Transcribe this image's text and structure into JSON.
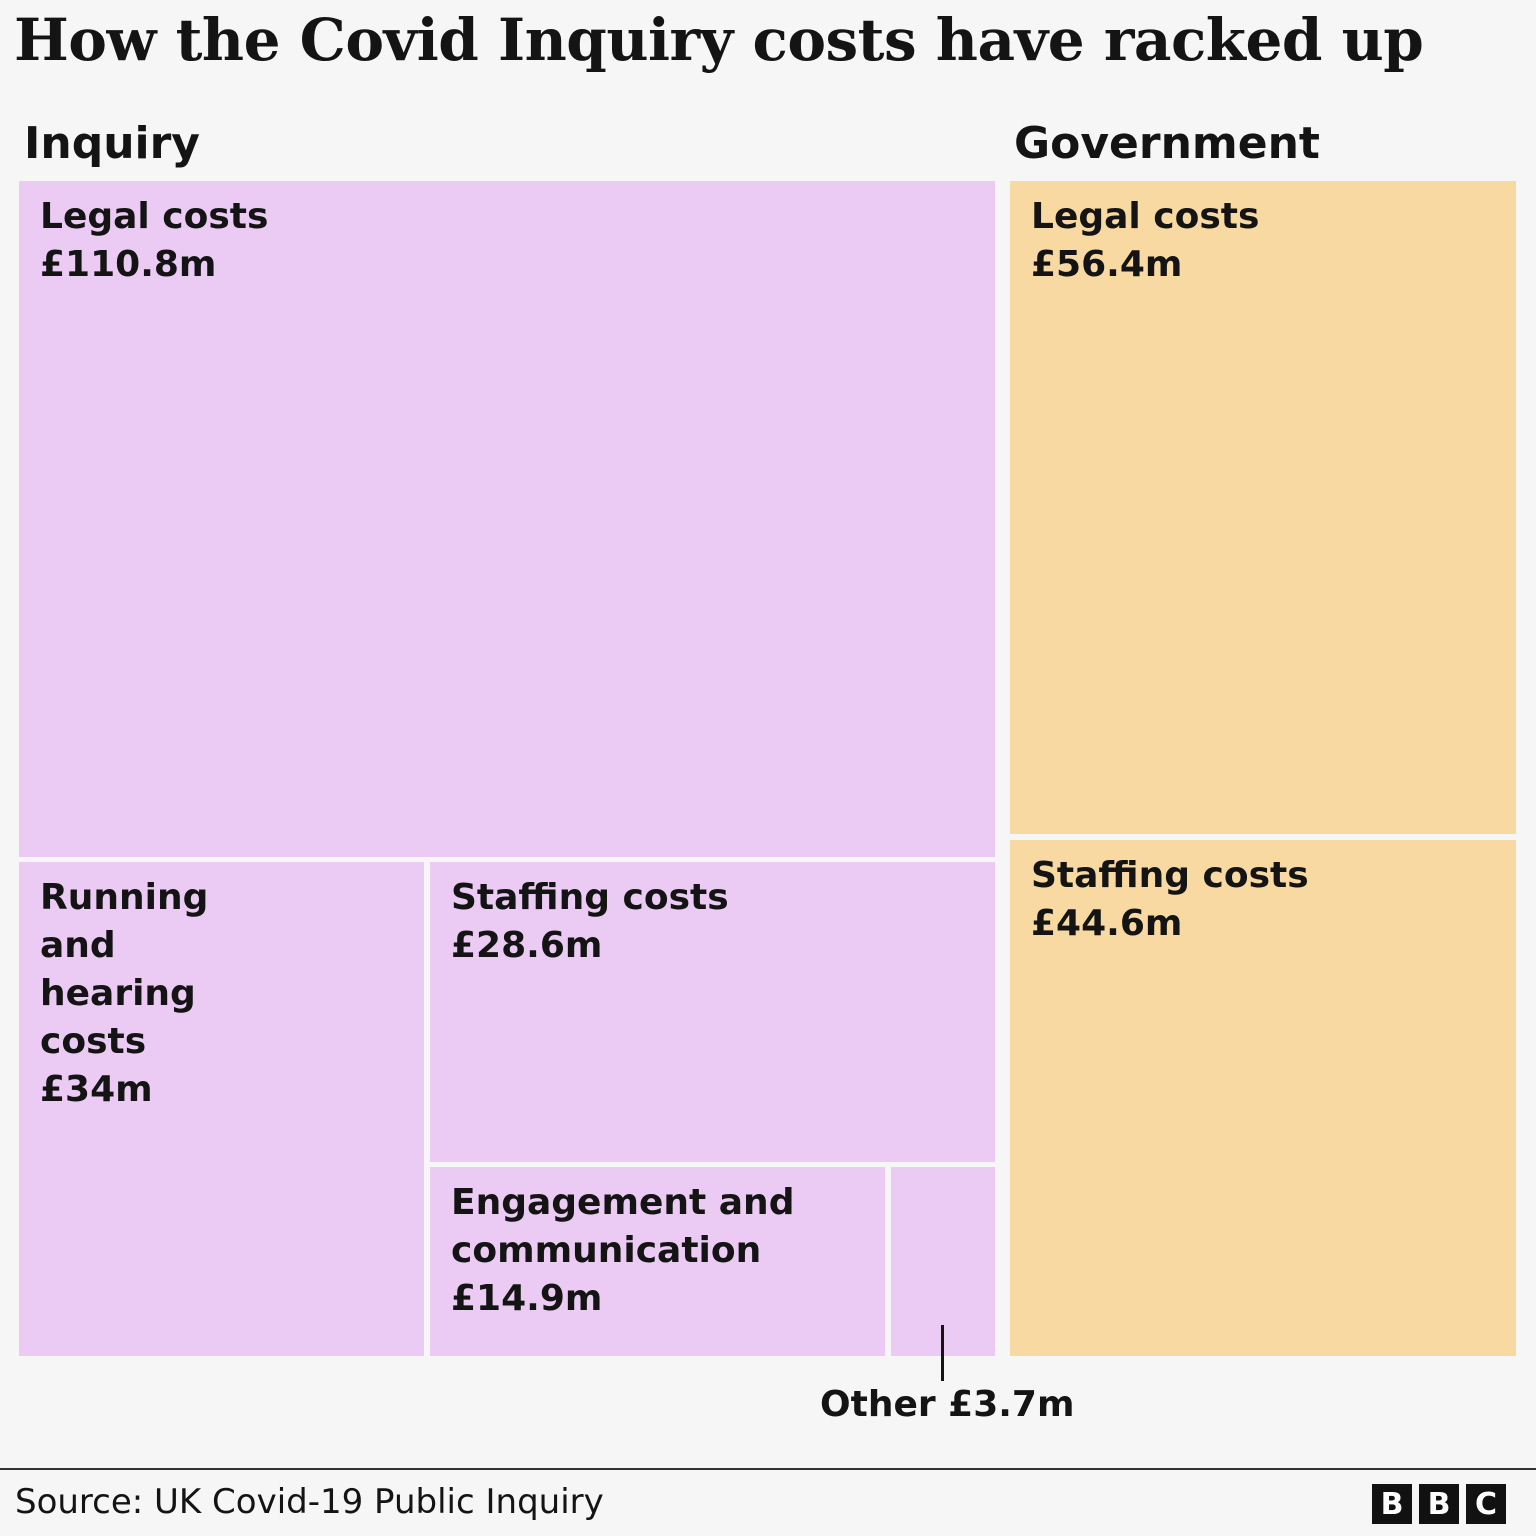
{
  "chart_data": {
    "type": "treemap",
    "title": "How the Covid Inquiry costs have racked up",
    "groups": [
      {
        "name": "Inquiry",
        "color": "#ebcbf4",
        "items": [
          {
            "label": "Legal costs",
            "value_label": "£110.8m",
            "value": 110.8
          },
          {
            "label": "Running and hearing costs",
            "value_label": "£34m",
            "value": 34
          },
          {
            "label": "Staffing costs",
            "value_label": "£28.6m",
            "value": 28.6
          },
          {
            "label": "Engagement and communication",
            "value_label": "£14.9m",
            "value": 14.9
          },
          {
            "label": "Other",
            "value_label": "£3.7m",
            "value": 3.7
          }
        ]
      },
      {
        "name": "Government",
        "color": "#f8d9a2",
        "items": [
          {
            "label": "Legal costs",
            "value_label": "£56.4m",
            "value": 56.4
          },
          {
            "label": "Staffing costs",
            "value_label": "£44.6m",
            "value": 44.6
          }
        ]
      }
    ]
  },
  "other_annotation": "Other £3.7m",
  "source": "Source: UK Covid-19 Public Inquiry",
  "logo": [
    "B",
    "B",
    "C"
  ]
}
